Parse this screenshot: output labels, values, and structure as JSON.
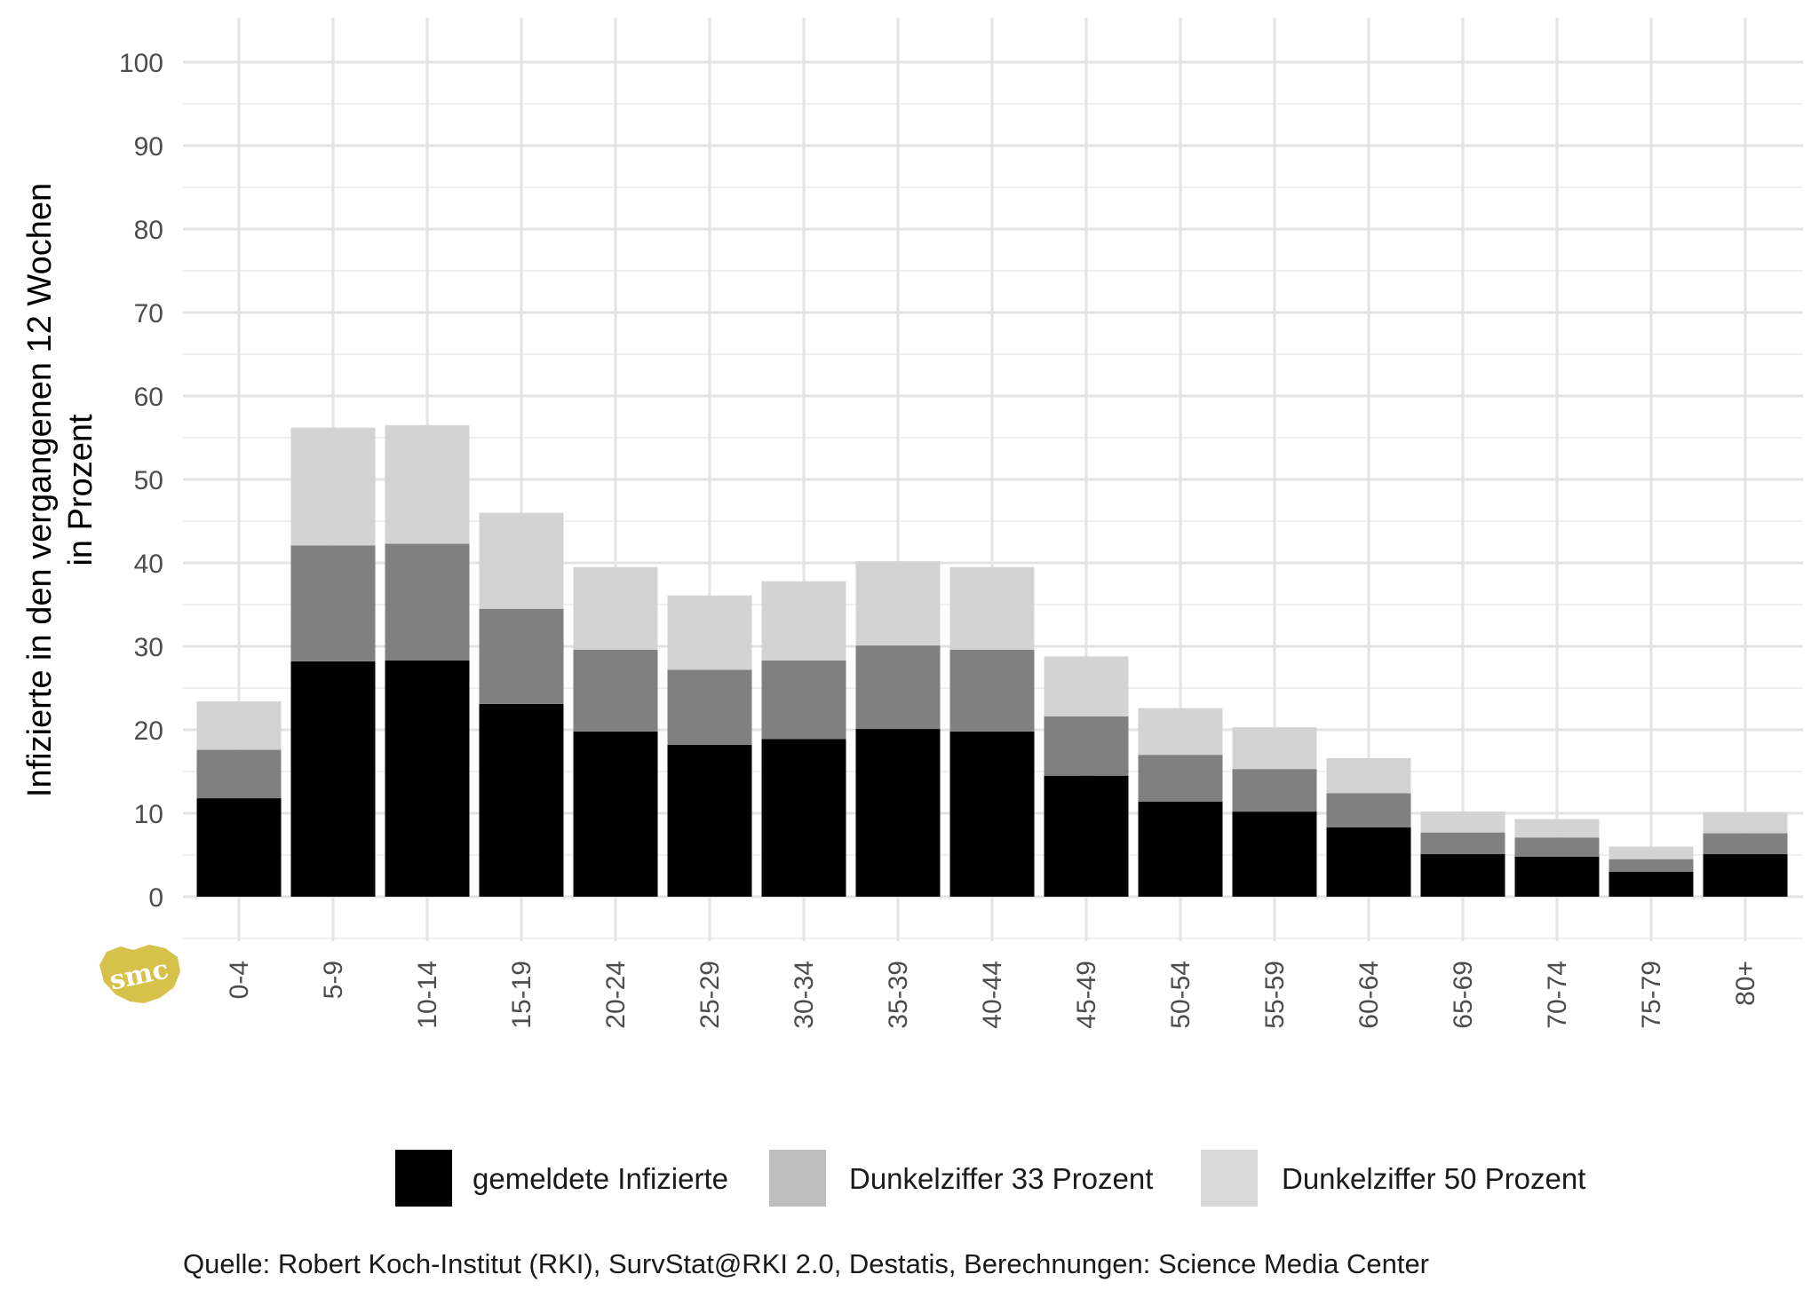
{
  "chart_data": {
    "type": "bar",
    "stacked": true,
    "ylabel_lines": [
      "Infizierte in den vergangenen 12 Wochen",
      "in Prozent"
    ],
    "xlabel": "",
    "ylim": [
      0,
      100
    ],
    "yticks": [
      0,
      10,
      20,
      30,
      40,
      50,
      60,
      70,
      80,
      90,
      100
    ],
    "grid": true,
    "legend_position": "bottom",
    "categories": [
      "0-4",
      "5-9",
      "10-14",
      "15-19",
      "20-24",
      "25-29",
      "30-34",
      "35-39",
      "40-44",
      "45-49",
      "50-54",
      "55-59",
      "60-64",
      "65-69",
      "70-74",
      "75-79",
      "80+"
    ],
    "series": [
      {
        "name": "gemeldete Infizierte",
        "color": "#000000",
        "values": [
          11.8,
          28.2,
          28.3,
          23.1,
          19.8,
          18.2,
          18.9,
          20.1,
          19.8,
          14.5,
          11.4,
          10.2,
          8.3,
          5.1,
          4.8,
          3.0,
          5.1
        ]
      },
      {
        "name": "Dunkelziffer 33 Prozent",
        "color": "#808080",
        "values": [
          5.8,
          13.9,
          14.0,
          11.4,
          9.8,
          9.0,
          9.4,
          10.0,
          9.8,
          7.1,
          5.6,
          5.1,
          4.1,
          2.6,
          2.3,
          1.5,
          2.5
        ]
      },
      {
        "name": "Dunkelziffer 50 Prozent",
        "color": "#d3d3d3",
        "values": [
          5.8,
          14.1,
          14.2,
          11.5,
          9.9,
          8.9,
          9.5,
          10.1,
          9.9,
          7.2,
          5.6,
          5.0,
          4.2,
          2.5,
          2.2,
          1.5,
          2.5
        ]
      }
    ]
  },
  "legend": {
    "items": [
      {
        "label": "gemeldete Infizierte",
        "swatch": "#000000"
      },
      {
        "label": "Dunkelziffer 33 Prozent",
        "swatch": "#bdbdbd"
      },
      {
        "label": "Dunkelziffer 50 Prozent",
        "swatch": "#d9d9d9"
      }
    ]
  },
  "caption": "Quelle: Robert Koch-Institut (RKI), SurvStat@RKI 2.0, Destatis, Berechnungen: Science Media Center",
  "logo": {
    "text": "smc",
    "color": "#d6c24a"
  }
}
